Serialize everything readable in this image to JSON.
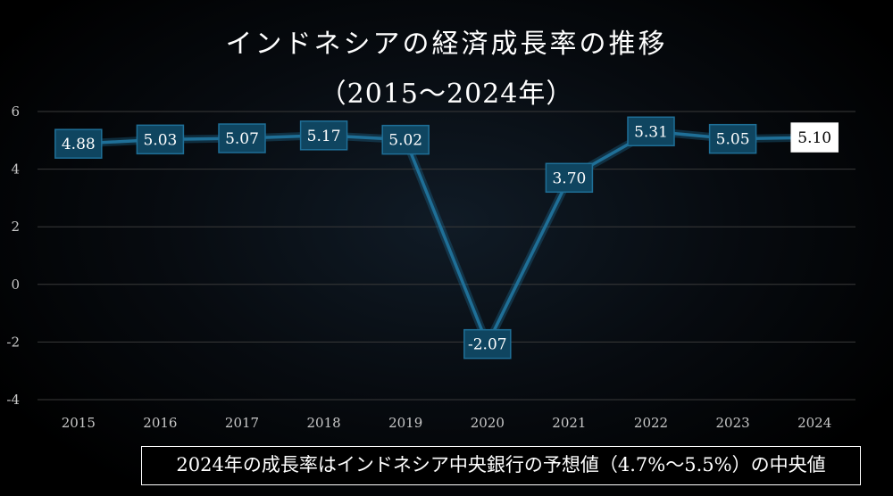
{
  "chart_data": {
    "type": "line",
    "title": "インドネシアの経済成長率の推移",
    "subtitle": "（2015〜2024年）",
    "categories": [
      "2015",
      "2016",
      "2017",
      "2018",
      "2019",
      "2020",
      "2021",
      "2022",
      "2023",
      "2024"
    ],
    "values": [
      4.88,
      5.03,
      5.07,
      5.17,
      5.02,
      -2.07,
      3.7,
      5.31,
      5.05,
      5.1
    ],
    "data_labels": [
      "4.88",
      "5.03",
      "5.07",
      "5.17",
      "5.02",
      "-2.07",
      "3.70",
      "5.31",
      "5.05",
      "5.10"
    ],
    "ylim": [
      -4,
      6
    ],
    "yticks": [
      6,
      4,
      2,
      0,
      -2,
      -4
    ],
    "ytick_labels": [
      "6",
      "4",
      "2",
      "0",
      "-2",
      "-4"
    ],
    "grid": true,
    "highlight_last": true,
    "annotation": "2024年の成長率はインドネシア中央銀行の予想値（4.7%〜5.5%）の中央値",
    "colors": {
      "line": "#1f6f97",
      "label_box": "#0f4560",
      "label_box_border": "#1f6f97",
      "highlight_box": "#ffffff",
      "highlight_text": "#000000",
      "grid": "#3a3a3a"
    }
  }
}
